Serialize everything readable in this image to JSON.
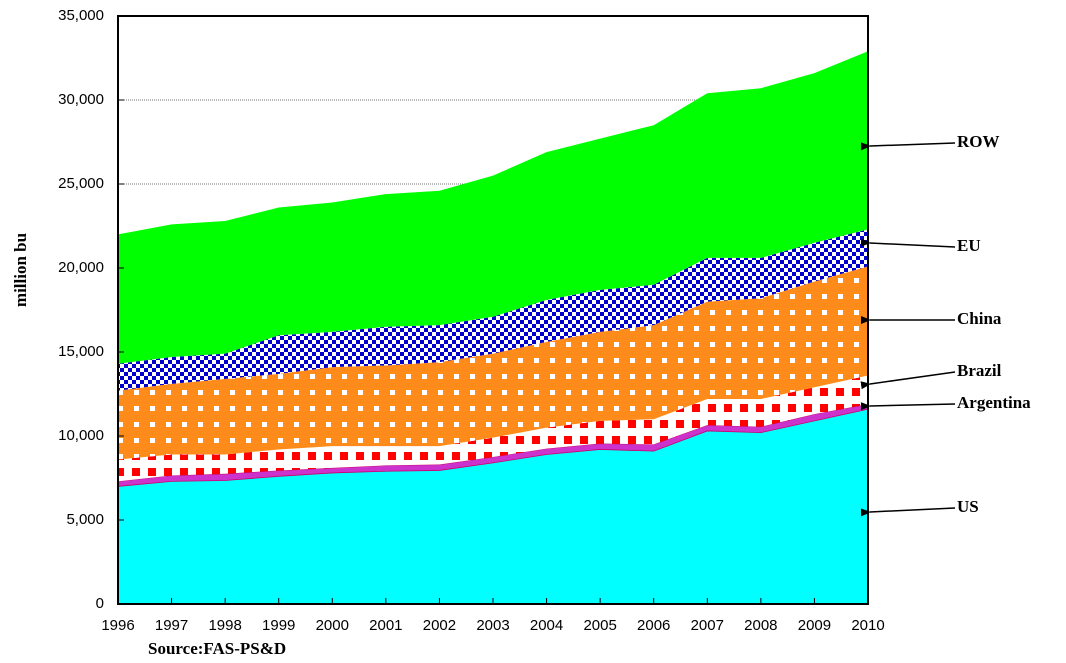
{
  "chart_data": {
    "type": "stacked_area",
    "y_label": "million bu",
    "source": "Source:FAS-PS&D",
    "x": [
      1996,
      1997,
      1998,
      1999,
      2000,
      2001,
      2002,
      2003,
      2004,
      2005,
      2006,
      2007,
      2008,
      2009,
      2010
    ],
    "xlim": [
      1996,
      2010
    ],
    "xticks": [
      1996,
      1997,
      1998,
      1999,
      2000,
      2001,
      2002,
      2003,
      2004,
      2005,
      2006,
      2007,
      2008,
      2009,
      2010
    ],
    "ylim": [
      0,
      35000
    ],
    "yticks": [
      0,
      {
        "value": 5000,
        "label": "5,000"
      },
      {
        "value": 10000,
        "label": "10,000"
      },
      {
        "value": 15000,
        "label": "15,000"
      },
      {
        "value": 20000,
        "label": "20,000"
      },
      {
        "value": 25000,
        "label": "25,000"
      },
      {
        "value": 30000,
        "label": "30,000"
      },
      {
        "value": 35000,
        "label": "35,000"
      }
    ],
    "grid": true,
    "series": [
      {
        "name": "US",
        "color": "#00ffff",
        "values": [
          7000,
          7300,
          7350,
          7600,
          7800,
          7900,
          7950,
          8400,
          8900,
          9200,
          9100,
          10300,
          10200,
          10900,
          11600
        ]
      },
      {
        "name": "Argentina",
        "color": "#cc33cc",
        "values": [
          300,
          350,
          400,
          350,
          300,
          350,
          350,
          350,
          350,
          350,
          400,
          350,
          350,
          400,
          300
        ]
      },
      {
        "name": "Brazil",
        "color": "#ff0000",
        "values": [
          1300,
          1250,
          1150,
          1250,
          1300,
          1150,
          1100,
          1150,
          1250,
          1350,
          1500,
          1550,
          1650,
          1600,
          1700
        ]
      },
      {
        "name": "China",
        "color": "#ff8c1a",
        "values": [
          4100,
          4200,
          4500,
          4500,
          4700,
          4800,
          5000,
          5000,
          5100,
          5300,
          5600,
          5800,
          6000,
          6300,
          6500
        ]
      },
      {
        "name": "EU",
        "color": "#0000cc",
        "values": [
          1600,
          1600,
          1500,
          2300,
          2100,
          2300,
          2200,
          2200,
          2500,
          2500,
          2400,
          2600,
          2400,
          2300,
          2200
        ]
      },
      {
        "name": "ROW",
        "color": "#00ff00",
        "values": [
          7700,
          7900,
          7900,
          7600,
          7700,
          7900,
          8000,
          8400,
          8800,
          9000,
          9500,
          9800,
          10100,
          10100,
          10600
        ]
      }
    ]
  }
}
